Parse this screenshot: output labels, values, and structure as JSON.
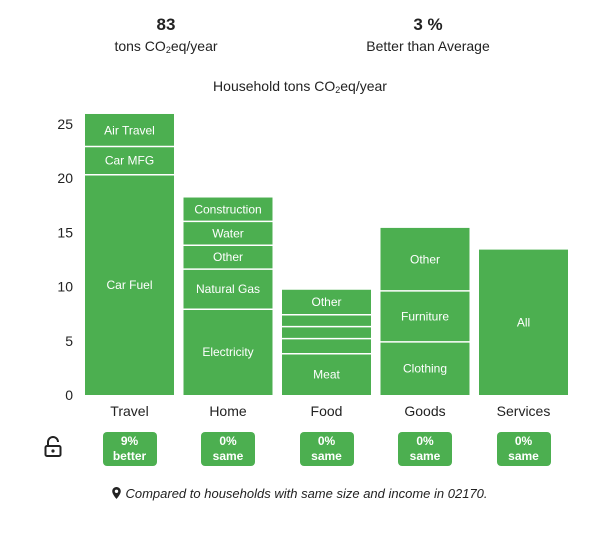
{
  "summary": {
    "total": {
      "value": "83",
      "unit_prefix": "tons CO",
      "unit_sub": "2",
      "unit_suffix": "eq/year"
    },
    "comparison": {
      "value": "3 %",
      "label": "Better than Average"
    }
  },
  "chart_title": {
    "prefix": "Household tons CO",
    "sub": "2",
    "suffix": "eq/year"
  },
  "chart_data": {
    "type": "bar",
    "stacked": true,
    "categories": [
      "Travel",
      "Home",
      "Food",
      "Goods",
      "Services"
    ],
    "ylim": [
      0,
      25
    ],
    "yticks": [
      0,
      5,
      10,
      15,
      20,
      25
    ],
    "grid": false,
    "colors": {
      "bar": "#4caf50",
      "segment_divider": "#ffffff"
    },
    "stacks": [
      {
        "category": "Travel",
        "segments": [
          {
            "label": "Car Fuel",
            "value": 20.3
          },
          {
            "label": "Car MFG",
            "value": 2.6
          },
          {
            "label": "Air Travel",
            "value": 3.0
          }
        ]
      },
      {
        "category": "Home",
        "segments": [
          {
            "label": "Electricity",
            "value": 7.9
          },
          {
            "label": "Natural Gas",
            "value": 3.7
          },
          {
            "label": "Other",
            "value": 2.2
          },
          {
            "label": "Water",
            "value": 2.2
          },
          {
            "label": "Construction",
            "value": 2.2
          }
        ]
      },
      {
        "category": "Food",
        "segments": [
          {
            "label": "Meat",
            "value": 3.8
          },
          {
            "label": "",
            "value": 1.4
          },
          {
            "label": "",
            "value": 1.1
          },
          {
            "label": "",
            "value": 1.1
          },
          {
            "label": "Other",
            "value": 2.3
          }
        ]
      },
      {
        "category": "Goods",
        "segments": [
          {
            "label": "Clothing",
            "value": 4.9
          },
          {
            "label": "Furniture",
            "value": 4.7
          },
          {
            "label": "Other",
            "value": 5.8
          }
        ]
      },
      {
        "category": "Services",
        "segments": [
          {
            "label": "All",
            "value": 13.4
          }
        ]
      }
    ]
  },
  "badges": [
    {
      "pct": "9%",
      "rel": "better"
    },
    {
      "pct": "0%",
      "rel": "same"
    },
    {
      "pct": "0%",
      "rel": "same"
    },
    {
      "pct": "0%",
      "rel": "same"
    },
    {
      "pct": "0%",
      "rel": "same"
    }
  ],
  "lock_icon": "unlock-icon",
  "location_icon": "map-pin-icon",
  "footnote": "Compared to households with same size and income in 02170."
}
